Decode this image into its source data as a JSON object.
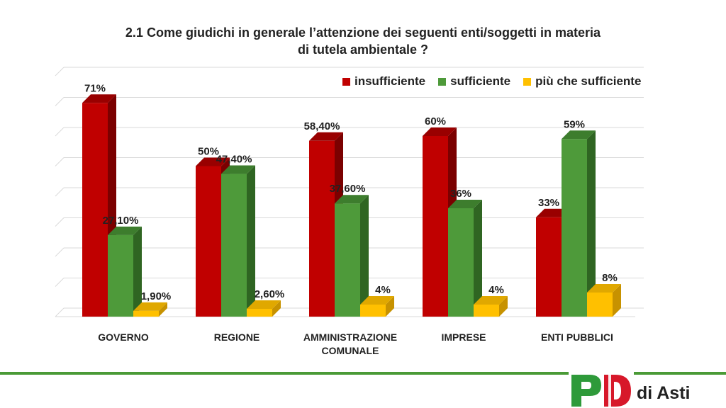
{
  "title_line1": "2.1 Come giudichi in generale l’attenzione dei seguenti enti/soggetti in materia",
  "title_line2": "di tutela ambientale ?",
  "chart_data": {
    "type": "bar",
    "title": "2.1 Come giudichi in generale l’attenzione dei seguenti enti/soggetti in materia di tutela ambientale ?",
    "categories": [
      "GOVERNO",
      "REGIONE",
      "AMMINISTRAZIONE COMUNALE",
      "IMPRESE",
      "ENTI PUBBLICI"
    ],
    "category_lines": [
      [
        "GOVERNO"
      ],
      [
        "REGIONE"
      ],
      [
        "AMMINISTRAZIONE",
        "COMUNALE"
      ],
      [
        "IMPRESE"
      ],
      [
        "ENTI PUBBLICI"
      ]
    ],
    "series": [
      {
        "name": "insufficiente",
        "color": "#c00000",
        "side_color": "#7b0000",
        "top_color": "#990000",
        "values": [
          71,
          50,
          58.4,
          60,
          33
        ],
        "labels": [
          "71%",
          "50%",
          "58,40%",
          "60%",
          "33%"
        ]
      },
      {
        "name": "sufficiente",
        "color": "#4e9a3a",
        "side_color": "#2f6522",
        "top_color": "#3d7d2d",
        "values": [
          27.1,
          47.4,
          37.6,
          36,
          59
        ],
        "labels": [
          "27,10%",
          "47,40%",
          "37,60%",
          "36%",
          "59%"
        ]
      },
      {
        "name": "più che sufficiente",
        "color": "#ffc000",
        "side_color": "#c79200",
        "top_color": "#e0a800",
        "values": [
          1.9,
          2.6,
          4,
          4,
          8
        ],
        "labels": [
          "1,90%",
          "2,60%",
          "4%",
          "4%",
          "8%"
        ]
      }
    ],
    "ylim": [
      0,
      80
    ],
    "grid": true,
    "legend_position": "top-right",
    "xlabel": "",
    "ylabel": ""
  },
  "footer": {
    "logo_letters": "PD",
    "city_label": "di Asti",
    "logo_colors": {
      "green": "#2e9a3a",
      "red": "#d7182a"
    }
  }
}
